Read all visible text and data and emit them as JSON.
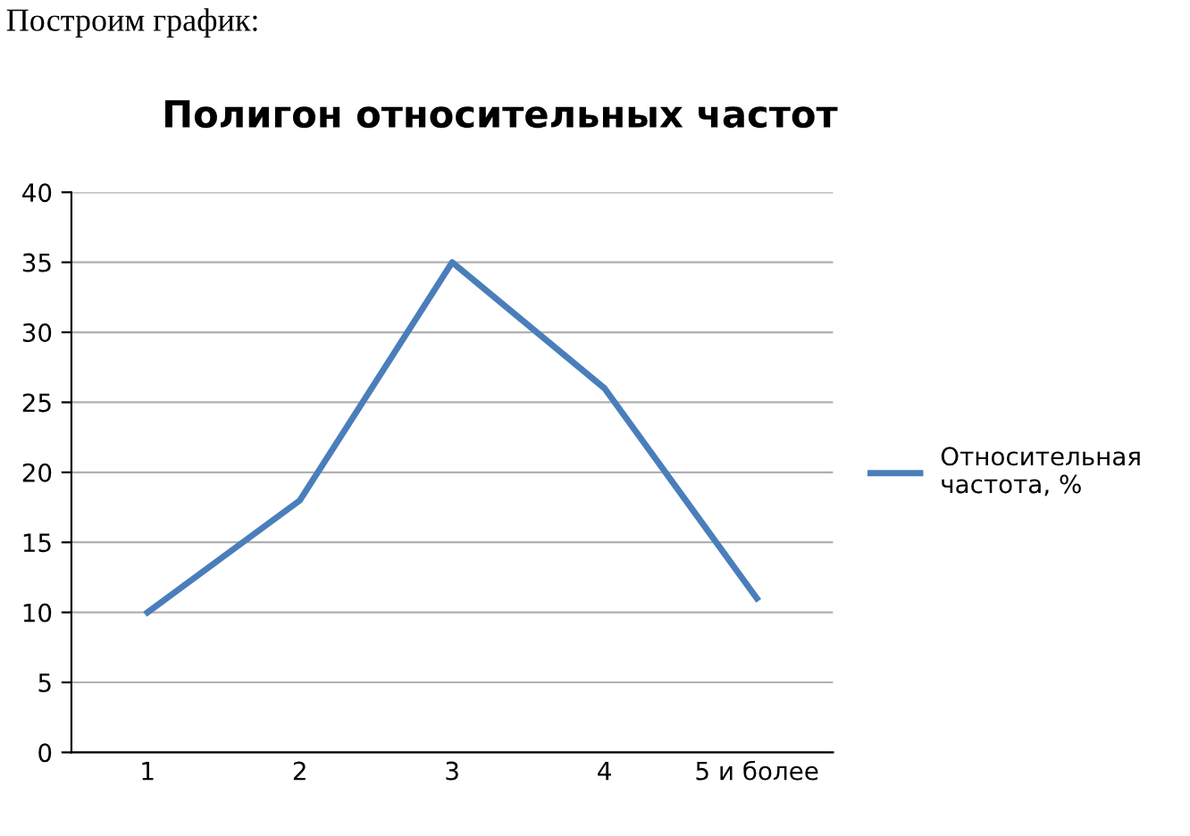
{
  "chart_data": {
    "type": "line",
    "title": "Полигон относительных частот",
    "annotations": [
      "Построим график:"
    ],
    "categories": [
      "1",
      "2",
      "3",
      "4",
      "5 и более"
    ],
    "series": [
      {
        "name": "Относительная частота, %",
        "color": "#4a7ebb",
        "values": [
          10,
          18,
          35,
          26,
          11
        ]
      }
    ],
    "ylim": [
      0,
      40
    ],
    "yticks": [
      0,
      5,
      10,
      15,
      20,
      25,
      30,
      35,
      40
    ],
    "grid": "y",
    "legend": "right",
    "marker": "none",
    "line_style": "solid"
  }
}
